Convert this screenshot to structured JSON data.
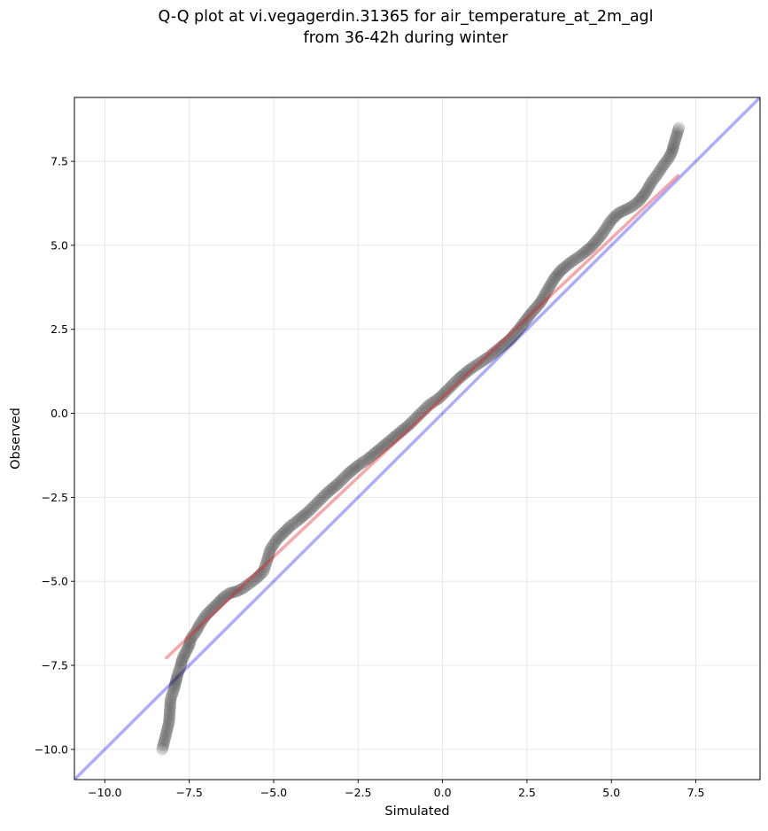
{
  "chart_data": {
    "type": "scatter",
    "title_lines": [
      "Q-Q plot at vi.vegagerdin.31365 for air_temperature_at_2m_agl",
      "from 36-42h during winter"
    ],
    "xlabel": "Simulated",
    "ylabel": "Observed",
    "xlim": [
      -10.9,
      9.4
    ],
    "ylim": [
      -10.9,
      9.4
    ],
    "x_ticks": [
      -10.0,
      -7.5,
      -5.0,
      -2.5,
      0.0,
      2.5,
      5.0,
      7.5
    ],
    "y_ticks": [
      -10.0,
      -7.5,
      -5.0,
      -2.5,
      0.0,
      2.5,
      5.0,
      7.5
    ],
    "x_tick_labels": [
      "−10.0",
      "−7.5",
      "−5.0",
      "−2.5",
      "0.0",
      "2.5",
      "5.0",
      "7.5"
    ],
    "y_tick_labels": [
      "−10.0",
      "−7.5",
      "−5.0",
      "−2.5",
      "0.0",
      "2.5",
      "5.0",
      "7.5"
    ],
    "grid": true,
    "quantile_points": {
      "x": [
        -8.3,
        -8.1,
        -8.05,
        -7.95,
        -7.9,
        -7.85,
        -7.75,
        -7.7,
        -7.6,
        -7.5,
        -7.45,
        -7.3,
        -7.2,
        -7.0,
        -6.8,
        -6.6,
        -6.45,
        -6.3,
        -6.1,
        -5.9,
        -5.7,
        -5.5,
        -5.3,
        -5.2,
        -5.1,
        -4.9,
        -4.7,
        -4.5,
        -4.3,
        -4.0,
        -3.7,
        -3.4,
        -3.1,
        -2.8,
        -2.5,
        -2.2,
        -1.9,
        -1.6,
        -1.3,
        -1.0,
        -0.7,
        -0.4,
        -0.1,
        0.2,
        0.5,
        0.8,
        1.1,
        1.4,
        1.7,
        2.0,
        2.3,
        2.6,
        2.9,
        3.1,
        3.3,
        3.5,
        3.8,
        4.1,
        4.4,
        4.7,
        5.0,
        5.2,
        5.4,
        5.6,
        5.8,
        6.0,
        6.2,
        6.35,
        6.45,
        6.55,
        6.7,
        6.8,
        6.85,
        7.0
      ],
      "y": [
        -10.0,
        -9.2,
        -8.5,
        -8.2,
        -8.0,
        -7.8,
        -7.5,
        -7.3,
        -7.1,
        -6.9,
        -6.7,
        -6.5,
        -6.3,
        -6.0,
        -5.8,
        -5.6,
        -5.45,
        -5.35,
        -5.3,
        -5.2,
        -5.05,
        -4.9,
        -4.7,
        -4.4,
        -4.05,
        -3.75,
        -3.55,
        -3.35,
        -3.2,
        -2.95,
        -2.65,
        -2.35,
        -2.1,
        -1.8,
        -1.55,
        -1.35,
        -1.1,
        -0.85,
        -0.6,
        -0.35,
        -0.05,
        0.25,
        0.45,
        0.75,
        1.05,
        1.3,
        1.5,
        1.7,
        1.95,
        2.2,
        2.55,
        2.95,
        3.3,
        3.65,
        4.0,
        4.25,
        4.5,
        4.7,
        4.95,
        5.3,
        5.75,
        5.95,
        6.05,
        6.15,
        6.3,
        6.55,
        6.9,
        7.1,
        7.25,
        7.4,
        7.6,
        7.8,
        8.0,
        8.5
      ]
    },
    "reference_line": {
      "x": [
        -11.0,
        9.5
      ],
      "y": [
        -11.0,
        9.5
      ],
      "color": "#0000ff"
    },
    "fit_line": {
      "x": [
        -8.2,
        7.0
      ],
      "y": [
        -7.3,
        7.1
      ],
      "color": "#e41a1c"
    },
    "marker_color": "#000000",
    "marker_alpha": 0.1
  }
}
